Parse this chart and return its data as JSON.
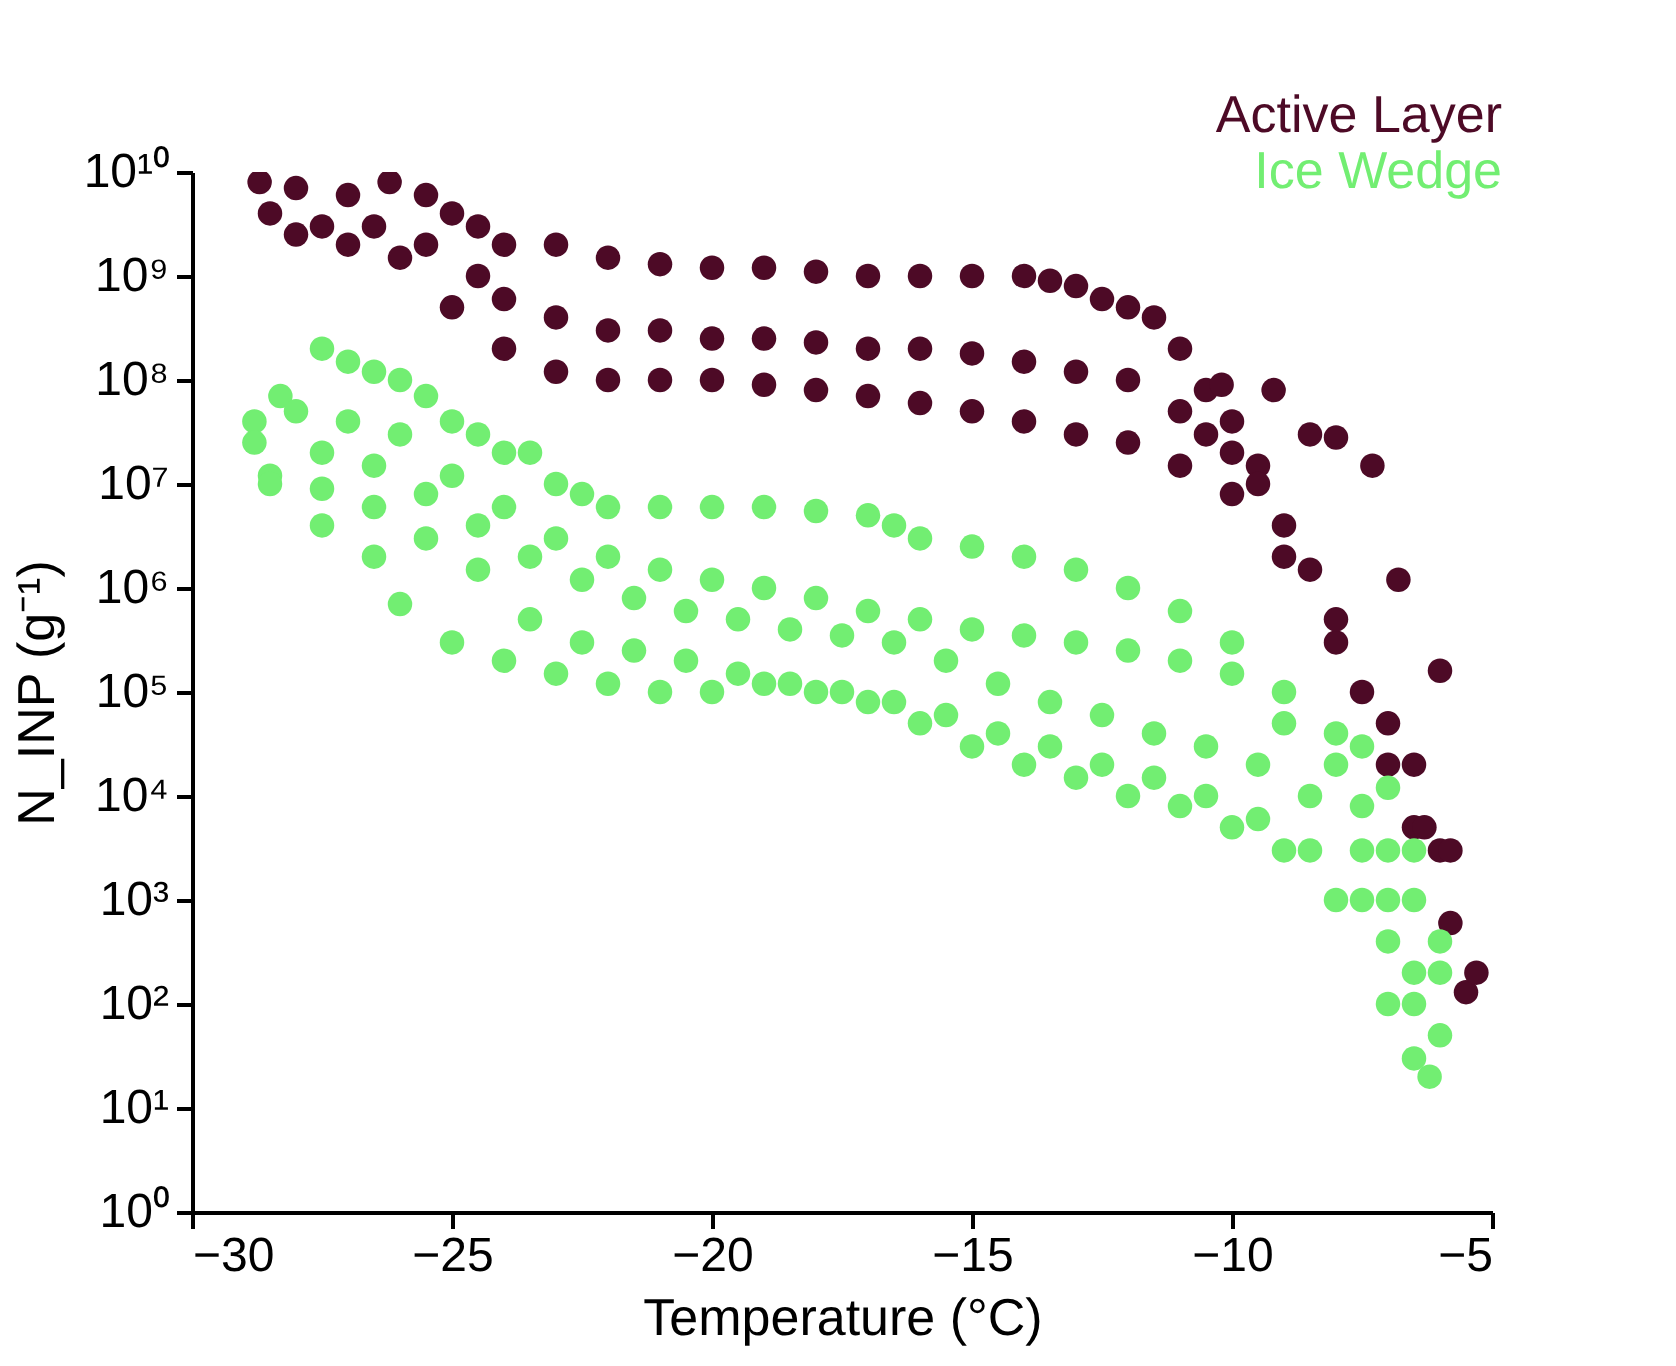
{
  "chart_data": {
    "type": "scatter",
    "xlabel": "Temperature (°C)",
    "ylabel": "N_INP (g⁻¹)",
    "xlim": [
      -30,
      -5
    ],
    "xticks": [
      -30,
      -25,
      -20,
      -15,
      -10,
      -5
    ],
    "ylim": [
      1,
      10000000000
    ],
    "log": "y",
    "yticks": [
      {
        "value": 1,
        "label": "10⁰"
      },
      {
        "value": 10,
        "label": "10¹"
      },
      {
        "value": 100,
        "label": "10²"
      },
      {
        "value": 1000,
        "label": "10³"
      },
      {
        "value": 10000,
        "label": "10⁴"
      },
      {
        "value": 100000,
        "label": "10⁵"
      },
      {
        "value": 1000000,
        "label": "10⁶"
      },
      {
        "value": 10000000,
        "label": "10⁷"
      },
      {
        "value": 100000000,
        "label": "10⁸"
      },
      {
        "value": 1000000000,
        "label": "10⁹"
      },
      {
        "value": 10000000000,
        "label": "10¹⁰"
      }
    ],
    "grid": false,
    "legend": "top right",
    "marker": "circle",
    "series": [
      {
        "name": "Active Layer",
        "color": "#4d0a26",
        "x": [
          -28.7,
          -28,
          -27,
          -26.2,
          -25.5,
          -25,
          -24.5,
          -24,
          -23,
          -22,
          -21,
          -20,
          -19,
          -18,
          -17,
          -16,
          -15,
          -14,
          -13.5,
          -13,
          -12.5,
          -12,
          -11.5,
          -11,
          -10.5,
          -10,
          -9.5,
          -9,
          -8.5,
          -8,
          -7.5,
          -7,
          -6.5,
          -6,
          -5.5,
          -28.5,
          -27.5,
          -26.5,
          -25.5,
          -24.5,
          -24,
          -23,
          -22,
          -21,
          -20,
          -19,
          -18,
          -17,
          -16,
          -15,
          -14,
          -13,
          -12,
          -11,
          -10.5,
          -10,
          -9.5,
          -28,
          -27,
          -26,
          -25,
          -24,
          -23,
          -22,
          -21,
          -20,
          -19,
          -18,
          -17,
          -16,
          -15,
          -14,
          -13,
          -12,
          -11,
          -10,
          -9,
          -8,
          -7,
          -6.5,
          -5.8,
          -10.2,
          -9.2,
          -8.5,
          -8,
          -7.3,
          -6.8,
          -6,
          -6.3,
          -5.8,
          -5.3
        ],
        "values": [
          8000000000.0,
          7000000000.0,
          6000000000.0,
          8000000000.0,
          6000000000.0,
          4000000000.0,
          3000000000.0,
          2000000000.0,
          2000000000.0,
          1500000000.0,
          1300000000.0,
          1200000000.0,
          1200000000.0,
          1100000000.0,
          1000000000.0,
          1000000000.0,
          1000000000.0,
          1000000000.0,
          900000000.0,
          800000000.0,
          600000000.0,
          500000000.0,
          400000000.0,
          200000000.0,
          80000000.0,
          40000000.0,
          15000000.0,
          4000000.0,
          1500000.0,
          300000.0,
          100000.0,
          20000.0,
          5000.0,
          3000.0,
          130,
          4000000000.0,
          3000000000.0,
          3000000000.0,
          2000000000.0,
          1000000000.0,
          600000000.0,
          400000000.0,
          300000000.0,
          300000000.0,
          250000000.0,
          250000000.0,
          230000000.0,
          200000000.0,
          200000000.0,
          180000000.0,
          150000000.0,
          120000000.0,
          100000000.0,
          50000000.0,
          30000000.0,
          20000000.0,
          10000000.0,
          2500000000.0,
          2000000000.0,
          1500000000.0,
          500000000.0,
          200000000.0,
          120000000.0,
          100000000.0,
          100000000.0,
          100000000.0,
          90000000.0,
          80000000.0,
          70000000.0,
          60000000.0,
          50000000.0,
          40000000.0,
          30000000.0,
          25000000.0,
          15000000.0,
          8000000.0,
          2000000.0,
          500000.0,
          50000.0,
          20000.0,
          600,
          90000000.0,
          80000000.0,
          30000000.0,
          28000000.0,
          15000000.0,
          1200000.0,
          160000.0,
          5000.0,
          3000.0,
          200
        ]
      },
      {
        "name": "Ice Wedge",
        "color": "#72ee72",
        "x": [
          -28.8,
          -28.3,
          -27.5,
          -27,
          -26.5,
          -26,
          -25.5,
          -25,
          -24.5,
          -24,
          -23.5,
          -23,
          -22.5,
          -22,
          -21,
          -20,
          -19,
          -18,
          -17,
          -16.5,
          -16,
          -15,
          -14,
          -13,
          -12,
          -11,
          -10,
          -9,
          -8,
          -7.5,
          -7,
          -6.5,
          -6,
          -28.8,
          -28,
          -27,
          -26,
          -25,
          -24,
          -23,
          -22,
          -21,
          -20,
          -19,
          -18,
          -17,
          -16,
          -15,
          -14,
          -13,
          -12,
          -11,
          -10,
          -9,
          -8,
          -7.5,
          -7,
          -6.5,
          -6,
          -28.5,
          -27.5,
          -26.5,
          -25.5,
          -24.5,
          -23.5,
          -22.5,
          -21.5,
          -20.5,
          -19.5,
          -18.5,
          -17.5,
          -16.5,
          -15.5,
          -14.5,
          -13.5,
          -12.5,
          -11.5,
          -10.5,
          -9.5,
          -8.5,
          -7.5,
          -7,
          -6.5,
          -6,
          -28.5,
          -27.5,
          -26.5,
          -25.5,
          -24.5,
          -23.5,
          -22.5,
          -21.5,
          -20.5,
          -19.5,
          -18.5,
          -17.5,
          -16.5,
          -15.5,
          -14.5,
          -13.5,
          -12.5,
          -11.5,
          -10.5,
          -9.5,
          -8.5,
          -7.5,
          -7,
          -6.5,
          -6.2,
          -27.5,
          -26.5,
          -26,
          -25,
          -24,
          -23,
          -22,
          -21,
          -20,
          -19,
          -18,
          -17,
          -16,
          -15,
          -14,
          -13,
          -12,
          -11,
          -10,
          -9,
          -8,
          -7,
          -6.5
        ],
        "values": [
          40000000.0,
          70000000.0,
          200000000.0,
          150000000.0,
          120000000.0,
          100000000.0,
          70000000.0,
          40000000.0,
          30000000.0,
          20000000.0,
          20000000.0,
          10000000.0,
          8000000.0,
          6000000.0,
          6000000.0,
          6000000.0,
          6000000.0,
          5500000.0,
          5000000.0,
          4000000.0,
          3000000.0,
          2500000.0,
          2000000.0,
          1500000.0,
          1000000.0,
          600000.0,
          300000.0,
          100000.0,
          40000.0,
          30000.0,
          12000.0,
          3000.0,
          400,
          25000000.0,
          50000000.0,
          40000000.0,
          30000000.0,
          12000000.0,
          6000000.0,
          3000000.0,
          2000000.0,
          1500000.0,
          1200000.0,
          1000000.0,
          800000.0,
          600000.0,
          500000.0,
          400000.0,
          350000.0,
          300000.0,
          250000.0,
          200000.0,
          150000.0,
          50000.0,
          20000.0,
          8000.0,
          3000.0,
          1000.0,
          200,
          12000000.0,
          20000000.0,
          15000000.0,
          8000000.0,
          4000000.0,
          2000000.0,
          1200000.0,
          800000.0,
          600000.0,
          500000.0,
          400000.0,
          350000.0,
          300000.0,
          200000.0,
          120000.0,
          80000.0,
          60000.0,
          40000.0,
          30000.0,
          20000.0,
          10000.0,
          3000.0,
          1000.0,
          200,
          50,
          10000000.0,
          9000000.0,
          6000000.0,
          3000000.0,
          1500000.0,
          500000.0,
          300000.0,
          250000.0,
          200000.0,
          150000.0,
          120000.0,
          100000.0,
          80000.0,
          60000.0,
          40000.0,
          30000.0,
          20000.0,
          15000.0,
          10000.0,
          6000.0,
          3000.0,
          1000.0,
          400,
          100,
          20,
          4000000.0,
          2000000.0,
          700000.0,
          300000.0,
          200000.0,
          150000.0,
          120000.0,
          100000.0,
          100000.0,
          120000.0,
          100000.0,
          80000.0,
          50000.0,
          30000.0,
          20000.0,
          15000.0,
          10000.0,
          8000.0,
          5000.0,
          3000.0,
          1000.0,
          100,
          30
        ]
      }
    ]
  }
}
